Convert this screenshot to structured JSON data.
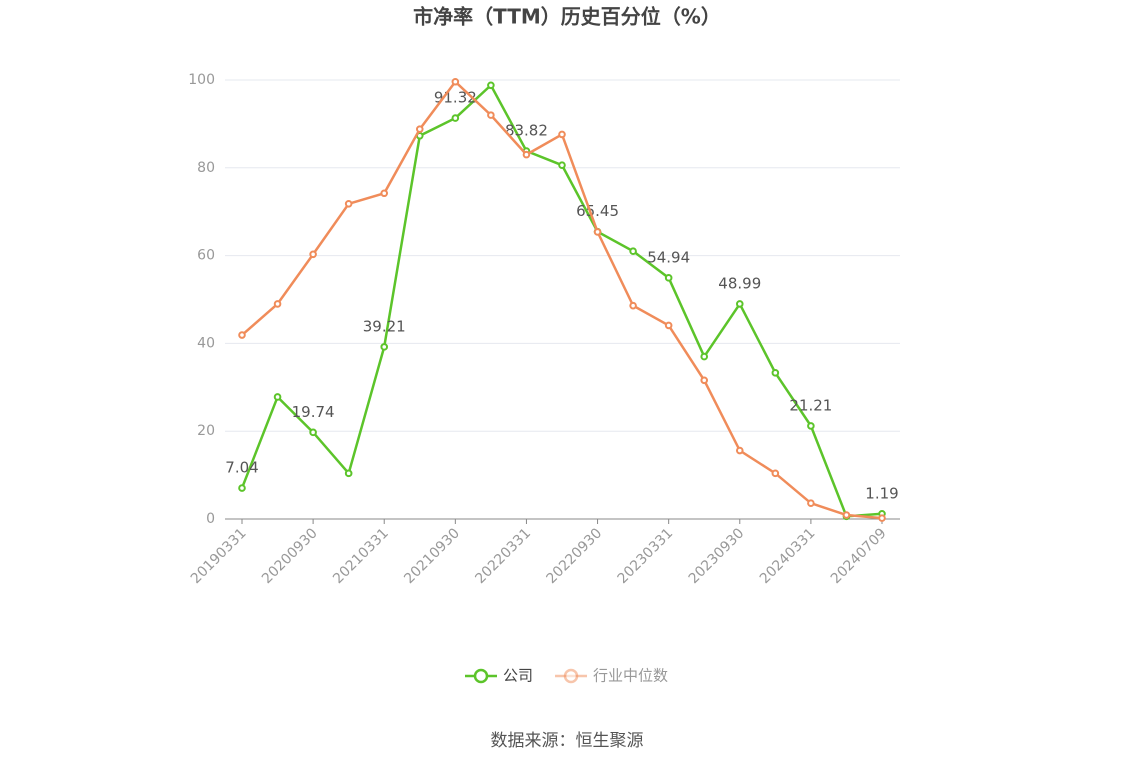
{
  "chart_data": {
    "type": "line",
    "title": "市净率（TTM）历史百分位（%）",
    "categories": [
      "20190331",
      null,
      "20200930",
      null,
      "20210331",
      null,
      "20210930",
      null,
      "20220331",
      null,
      "20220930",
      null,
      "20230331",
      null,
      "20230930",
      null,
      "20240331",
      null,
      "20240709"
    ],
    "series": [
      {
        "name": "公司",
        "color": "#5cc42a",
        "values": [
          7.04,
          27.8,
          19.74,
          10.4,
          39.21,
          87.3,
          91.32,
          98.8,
          83.82,
          80.6,
          65.45,
          61.0,
          54.94,
          37.0,
          48.99,
          33.3,
          21.21,
          0.6,
          1.19
        ],
        "value_labels": [
          "7.04",
          null,
          "19.74",
          null,
          "39.21",
          null,
          "91.32",
          null,
          "83.82",
          null,
          "65.45",
          null,
          "54.94",
          null,
          "48.99",
          null,
          "21.21",
          null,
          "1.19"
        ]
      },
      {
        "name": "行业中位数",
        "color": "#f08c5a",
        "values": [
          41.9,
          49.0,
          60.3,
          71.8,
          74.2,
          88.8,
          99.6,
          92.0,
          83.0,
          87.6,
          65.4,
          48.6,
          44.1,
          31.6,
          15.6,
          10.4,
          3.6,
          0.9,
          0.2
        ]
      }
    ],
    "ylim": [
      0,
      100
    ],
    "yticks": [
      0,
      20,
      40,
      60,
      80,
      100
    ],
    "grid": true,
    "source": "数据来源：恒生聚源"
  }
}
